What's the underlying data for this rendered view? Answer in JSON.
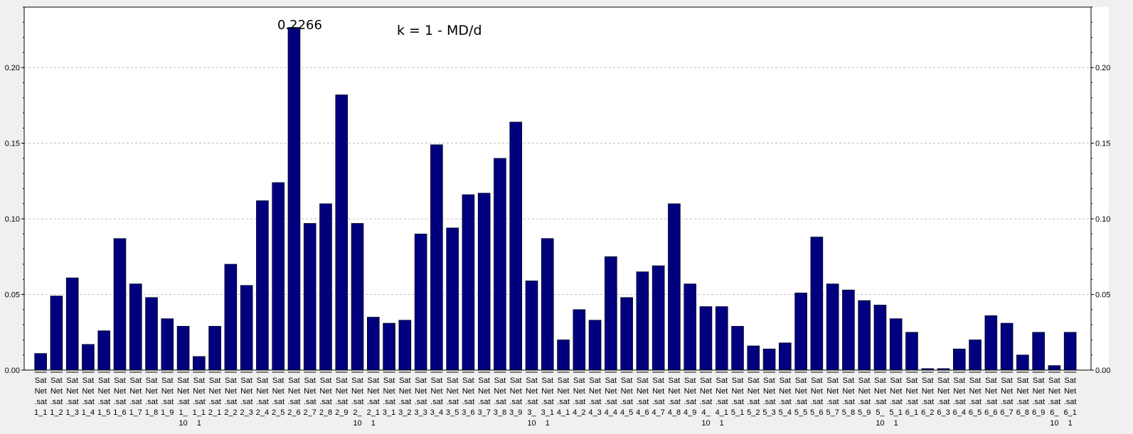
{
  "chart_data": {
    "type": "bar",
    "title": "",
    "xlabel": "",
    "ylabel": "",
    "ylim": [
      0,
      0.24
    ],
    "y_ticks": [
      "0.00",
      "0.05",
      "0.10",
      "0.15",
      "0.20"
    ],
    "grid": true,
    "colors": {
      "bar": "#00007f",
      "background": "#ffffff",
      "frame": "#000000",
      "grid": "#c0c0c0"
    },
    "annotations": [
      {
        "text": "0.2266",
        "category": "SatNet.sat2_6"
      },
      {
        "text": "k = 1 - MD/d"
      }
    ],
    "categories": [
      "SatNet.sat1_1",
      "SatNet.sat1_2",
      "SatNet.sat1_3",
      "SatNet.sat1_4",
      "SatNet.sat1_5",
      "SatNet.sat1_6",
      "SatNet.sat1_7",
      "SatNet.sat1_8",
      "SatNet.sat1_9",
      "SatNet.sat1_10",
      "SatNet.sat1_11",
      "SatNet.sat2_1",
      "SatNet.sat2_2",
      "SatNet.sat2_3",
      "SatNet.sat2_4",
      "SatNet.sat2_5",
      "SatNet.sat2_6",
      "SatNet.sat2_7",
      "SatNet.sat2_8",
      "SatNet.sat2_9",
      "SatNet.sat2_10",
      "SatNet.sat2_11",
      "SatNet.sat3_1",
      "SatNet.sat3_2",
      "SatNet.sat3_3",
      "SatNet.sat3_4",
      "SatNet.sat3_5",
      "SatNet.sat3_6",
      "SatNet.sat3_7",
      "SatNet.sat3_8",
      "SatNet.sat3_9",
      "SatNet.sat3_10",
      "SatNet.sat3_11",
      "SatNet.sat4_1",
      "SatNet.sat4_2",
      "SatNet.sat4_3",
      "SatNet.sat4_4",
      "SatNet.sat4_5",
      "SatNet.sat4_6",
      "SatNet.sat4_7",
      "SatNet.sat4_8",
      "SatNet.sat4_9",
      "SatNet.sat4_10",
      "SatNet.sat4_11",
      "SatNet.sat5_1",
      "SatNet.sat5_2",
      "SatNet.sat5_3",
      "SatNet.sat5_4",
      "SatNet.sat5_5",
      "SatNet.sat5_6",
      "SatNet.sat5_7",
      "SatNet.sat5_8",
      "SatNet.sat5_9",
      "SatNet.sat5_10",
      "SatNet.sat5_11",
      "SatNet.sat6_1",
      "SatNet.sat6_2",
      "SatNet.sat6_3",
      "SatNet.sat6_4",
      "SatNet.sat6_5",
      "SatNet.sat6_6",
      "SatNet.sat6_7",
      "SatNet.sat6_8",
      "SatNet.sat6_9",
      "SatNet.sat6_10",
      "SatNet.sat6_11"
    ],
    "category_label_lines": [
      [
        "Sat",
        "Net",
        ".sat",
        "1_1"
      ],
      [
        "Sat",
        "Net",
        ".sat",
        "1_2"
      ],
      [
        "Sat",
        "Net",
        ".sat",
        "1_3"
      ],
      [
        "Sat",
        "Net",
        ".sat",
        "1_4"
      ],
      [
        "Sat",
        "Net",
        ".sat",
        "1_5"
      ],
      [
        "Sat",
        "Net",
        ".sat",
        "1_6"
      ],
      [
        "Sat",
        "Net",
        ".sat",
        "1_7"
      ],
      [
        "Sat",
        "Net",
        ".sat",
        "1_8"
      ],
      [
        "Sat",
        "Net",
        ".sat",
        "1_9"
      ],
      [
        "Sat",
        "Net",
        ".sat",
        "1_",
        "10"
      ],
      [
        "Sat",
        "Net",
        ".sat",
        "1_1",
        "1"
      ],
      [
        "Sat",
        "Net",
        ".sat",
        "2_1"
      ],
      [
        "Sat",
        "Net",
        ".sat",
        "2_2"
      ],
      [
        "Sat",
        "Net",
        ".sat",
        "2_3"
      ],
      [
        "Sat",
        "Net",
        ".sat",
        "2_4"
      ],
      [
        "Sat",
        "Net",
        ".sat",
        "2_5"
      ],
      [
        "Sat",
        "Net",
        ".sat",
        "2_6"
      ],
      [
        "Sat",
        "Net",
        ".sat",
        "2_7"
      ],
      [
        "Sat",
        "Net",
        ".sat",
        "2_8"
      ],
      [
        "Sat",
        "Net",
        ".sat",
        "2_9"
      ],
      [
        "Sat",
        "Net",
        ".sat",
        "2_",
        "10"
      ],
      [
        "Sat",
        "Net",
        ".sat",
        "2_1",
        "1"
      ],
      [
        "Sat",
        "Net",
        ".sat",
        "3_1"
      ],
      [
        "Sat",
        "Net",
        ".sat",
        "3_2"
      ],
      [
        "Sat",
        "Net",
        ".sat",
        "3_3"
      ],
      [
        "Sat",
        "Net",
        ".sat",
        "3_4"
      ],
      [
        "Sat",
        "Net",
        ".sat",
        "3_5"
      ],
      [
        "Sat",
        "Net",
        ".sat",
        "3_6"
      ],
      [
        "Sat",
        "Net",
        ".sat",
        "3_7"
      ],
      [
        "Sat",
        "Net",
        ".sat",
        "3_8"
      ],
      [
        "Sat",
        "Net",
        ".sat",
        "3_9"
      ],
      [
        "Sat",
        "Net",
        ".sat",
        "3_",
        "10"
      ],
      [
        "Sat",
        "Net",
        ".sat",
        "3_1",
        "1"
      ],
      [
        "Sat",
        "Net",
        ".sat",
        "4_1"
      ],
      [
        "Sat",
        "Net",
        ".sat",
        "4_2"
      ],
      [
        "Sat",
        "Net",
        ".sat",
        "4_3"
      ],
      [
        "Sat",
        "Net",
        ".sat",
        "4_4"
      ],
      [
        "Sat",
        "Net",
        ".sat",
        "4_5"
      ],
      [
        "Sat",
        "Net",
        ".sat",
        "4_6"
      ],
      [
        "Sat",
        "Net",
        ".sat",
        "4_7"
      ],
      [
        "Sat",
        "Net",
        ".sat",
        "4_8"
      ],
      [
        "Sat",
        "Net",
        ".sat",
        "4_9"
      ],
      [
        "Sat",
        "Net",
        ".sat",
        "4_",
        "10"
      ],
      [
        "Sat",
        "Net",
        ".sat",
        "4_1",
        "1"
      ],
      [
        "Sat",
        "Net",
        ".sat",
        "5_1"
      ],
      [
        "Sat",
        "Net",
        ".sat",
        "5_2"
      ],
      [
        "Sat",
        "Net",
        ".sat",
        "5_3"
      ],
      [
        "Sat",
        "Net",
        ".sat",
        "5_4"
      ],
      [
        "Sat",
        "Net",
        ".sat",
        "5_5"
      ],
      [
        "Sat",
        "Net",
        ".sat",
        "5_6"
      ],
      [
        "Sat",
        "Net",
        ".sat",
        "5_7"
      ],
      [
        "Sat",
        "Net",
        ".sat",
        "5_8"
      ],
      [
        "Sat",
        "Net",
        ".sat",
        "5_9"
      ],
      [
        "Sat",
        "Net",
        ".sat",
        "5_",
        "10"
      ],
      [
        "Sat",
        "Net",
        ".sat",
        "5_1",
        "1"
      ],
      [
        "Sat",
        "Net",
        ".sat",
        "6_1"
      ],
      [
        "Sat",
        "Net",
        ".sat",
        "6_2"
      ],
      [
        "Sat",
        "Net",
        ".sat",
        "6_3"
      ],
      [
        "Sat",
        "Net",
        ".sat",
        "6_4"
      ],
      [
        "Sat",
        "Net",
        ".sat",
        "6_5"
      ],
      [
        "Sat",
        "Net",
        ".sat",
        "6_6"
      ],
      [
        "Sat",
        "Net",
        ".sat",
        "6_7"
      ],
      [
        "Sat",
        "Net",
        ".sat",
        "6_8"
      ],
      [
        "Sat",
        "Net",
        ".sat",
        "6_9"
      ],
      [
        "Sat",
        "Net",
        ".sat",
        "6_",
        "10"
      ],
      [
        "Sat",
        "Net",
        ".sat",
        "6_1",
        "1"
      ]
    ],
    "values": [
      0.011,
      0.049,
      0.061,
      0.017,
      0.026,
      0.087,
      0.057,
      0.048,
      0.034,
      0.029,
      0.009,
      0.029,
      0.07,
      0.056,
      0.112,
      0.124,
      0.2266,
      0.097,
      0.11,
      0.182,
      0.097,
      0.035,
      0.031,
      0.033,
      0.09,
      0.149,
      0.094,
      0.116,
      0.117,
      0.14,
      0.164,
      0.059,
      0.087,
      0.02,
      0.04,
      0.033,
      0.075,
      0.048,
      0.065,
      0.069,
      0.11,
      0.057,
      0.042,
      0.042,
      0.029,
      0.016,
      0.014,
      0.018,
      0.051,
      0.088,
      0.057,
      0.053,
      0.046,
      0.043,
      0.034,
      0.025,
      0.001,
      0.001,
      0.014,
      0.02,
      0.036,
      0.031,
      0.01,
      0.025,
      0.003,
      0.025
    ]
  }
}
